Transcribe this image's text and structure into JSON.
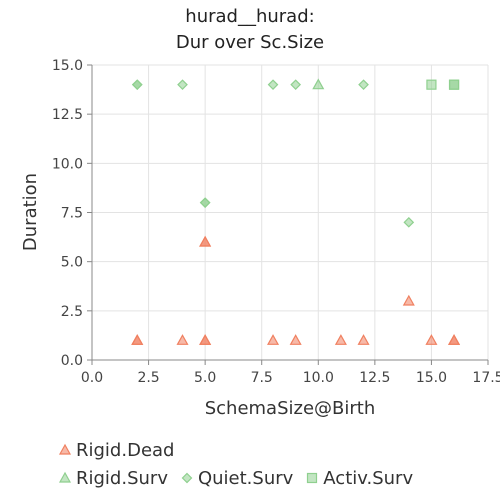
{
  "title": [
    "hurad__hurad:",
    "Dur over Sc.Size"
  ],
  "chart_data": {
    "type": "scatter",
    "title": "hurad__hurad: Dur over Sc.Size",
    "xlabel": "SchemaSize@Birth",
    "ylabel": "Duration",
    "xlim": [
      0,
      17.5
    ],
    "ylim": [
      0,
      15
    ],
    "x_ticks": [
      "0.0",
      "2.5",
      "5.0",
      "7.5",
      "10.0",
      "12.5",
      "15.0",
      "17.5"
    ],
    "y_ticks": [
      "0.0",
      "2.5",
      "5.0",
      "7.5",
      "10.0",
      "12.5",
      "15.0"
    ],
    "grid": true,
    "legend_position": "bottom",
    "series": [
      {
        "name": "Rigid.Dead",
        "marker": "triangle",
        "color": "#f08060",
        "points": [
          [
            2,
            1
          ],
          [
            2,
            1
          ],
          [
            4,
            1
          ],
          [
            5,
            1
          ],
          [
            5,
            1
          ],
          [
            5,
            6
          ],
          [
            5,
            6
          ],
          [
            8,
            1
          ],
          [
            9,
            1
          ],
          [
            11,
            1
          ],
          [
            12,
            1
          ],
          [
            14,
            3
          ],
          [
            15,
            1
          ],
          [
            16,
            1
          ],
          [
            16,
            1
          ]
        ]
      },
      {
        "name": "Rigid.Surv",
        "marker": "triangle",
        "color": "#8fcf8f",
        "points": [
          [
            10,
            14
          ]
        ]
      },
      {
        "name": "Quiet.Surv",
        "marker": "diamond",
        "color": "#8fd08f",
        "points": [
          [
            2,
            14
          ],
          [
            2,
            14
          ],
          [
            4,
            14
          ],
          [
            5,
            8
          ],
          [
            5,
            8
          ],
          [
            8,
            14
          ],
          [
            9,
            14
          ],
          [
            12,
            14
          ],
          [
            14,
            7
          ]
        ]
      },
      {
        "name": "Activ.Surv",
        "marker": "square",
        "color": "#8fd08f",
        "points": [
          [
            15,
            14
          ],
          [
            16,
            14
          ],
          [
            16,
            14
          ]
        ]
      }
    ]
  }
}
